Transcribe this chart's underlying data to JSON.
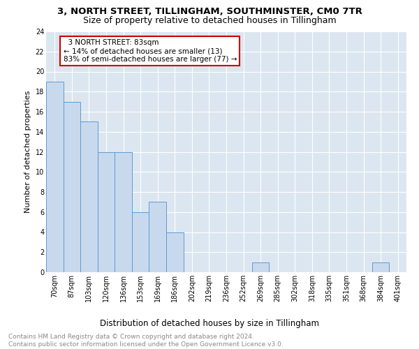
{
  "title1": "3, NORTH STREET, TILLINGHAM, SOUTHMINSTER, CM0 7TR",
  "title2": "Size of property relative to detached houses in Tillingham",
  "xlabel": "Distribution of detached houses by size in Tillingham",
  "ylabel": "Number of detached properties",
  "annotation_line1": "  3 NORTH STREET: 83sqm  ",
  "annotation_line2": "← 14% of detached houses are smaller (13)",
  "annotation_line3": "83% of semi-detached houses are larger (77) →",
  "bar_labels": [
    "70sqm",
    "87sqm",
    "103sqm",
    "120sqm",
    "136sqm",
    "153sqm",
    "169sqm",
    "186sqm",
    "202sqm",
    "219sqm",
    "236sqm",
    "252sqm",
    "269sqm",
    "285sqm",
    "302sqm",
    "318sqm",
    "335sqm",
    "351sqm",
    "368sqm",
    "384sqm",
    "401sqm"
  ],
  "bar_values": [
    19,
    17,
    15,
    12,
    12,
    6,
    7,
    4,
    0,
    0,
    0,
    0,
    1,
    0,
    0,
    0,
    0,
    0,
    0,
    1,
    0
  ],
  "bar_color": "#c9d9ed",
  "bar_edge_color": "#5b9bd5",
  "ylim": [
    0,
    24
  ],
  "ytick_step": 2,
  "background_color": "#ffffff",
  "grid_color": "#dce6f0",
  "annotation_box_color": "#ffffff",
  "annotation_box_edge": "#cc0000",
  "footer_text": "Contains HM Land Registry data © Crown copyright and database right 2024.\nContains public sector information licensed under the Open Government Licence v3.0.",
  "title1_fontsize": 9.5,
  "title2_fontsize": 9,
  "annotation_fontsize": 7.5,
  "axis_fontsize": 7,
  "ylabel_fontsize": 8,
  "xlabel_fontsize": 8.5,
  "footer_fontsize": 6.5
}
